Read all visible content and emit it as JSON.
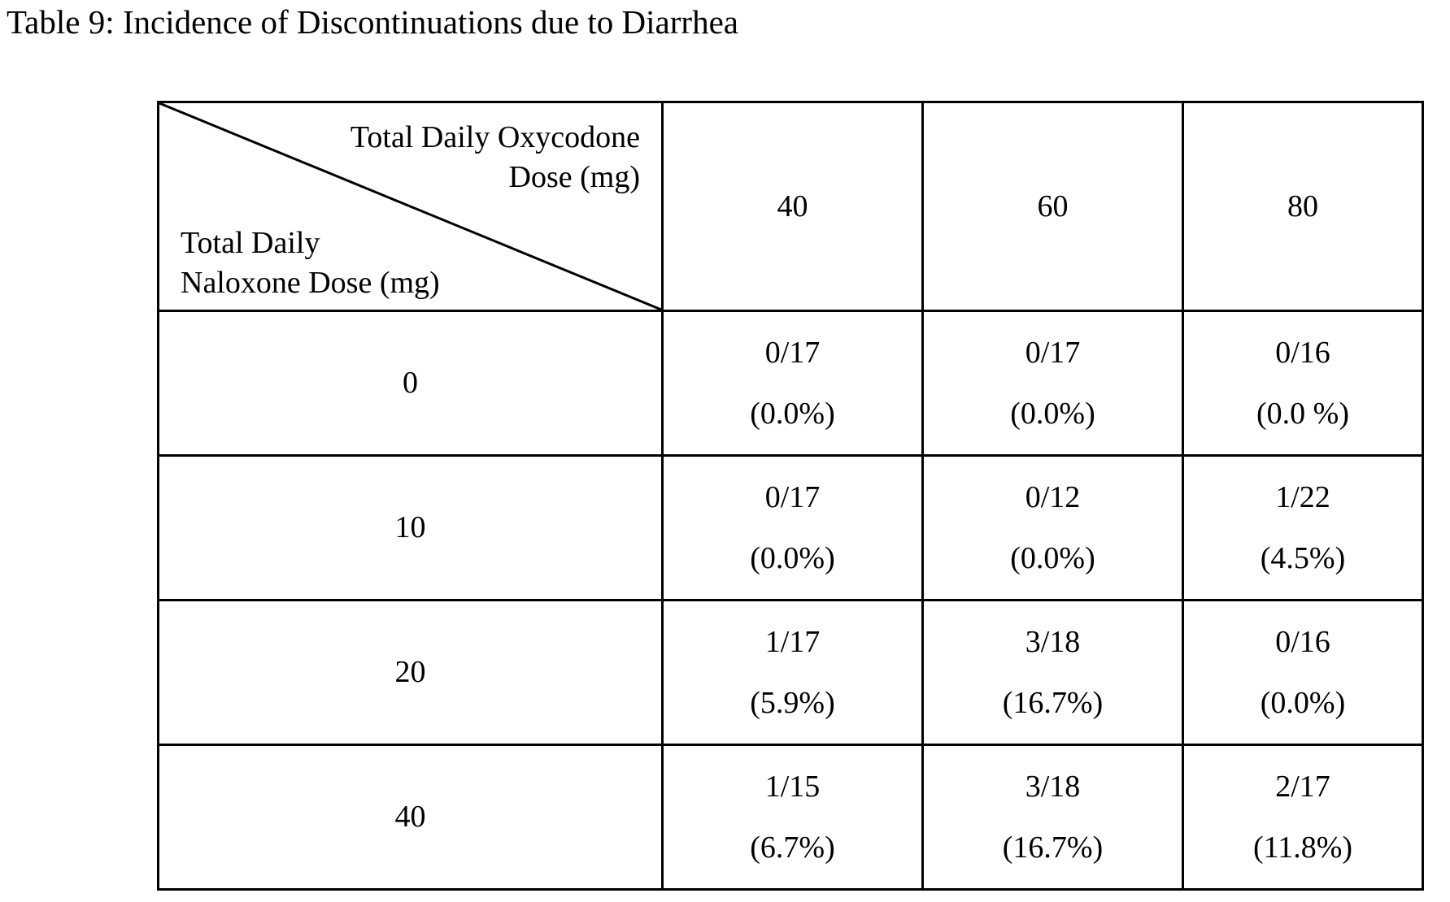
{
  "caption": "Table 9: Incidence of Discontinuations due to Diarrhea",
  "corner": {
    "column_header_line1": "Total Daily Oxycodone",
    "column_header_line2": "Dose (mg)",
    "row_header_line1": "Total Daily",
    "row_header_line2": "Naloxone Dose (mg)"
  },
  "columns": [
    "40",
    "60",
    "80"
  ],
  "rows": [
    {
      "label": "0",
      "cells": [
        {
          "count": "0/17",
          "percent": "(0.0%)"
        },
        {
          "count": "0/17",
          "percent": "(0.0%)"
        },
        {
          "count": "0/16",
          "percent": "(0.0 %)"
        }
      ]
    },
    {
      "label": "10",
      "cells": [
        {
          "count": "0/17",
          "percent": "(0.0%)"
        },
        {
          "count": "0/12",
          "percent": "(0.0%)"
        },
        {
          "count": "1/22",
          "percent": "(4.5%)"
        }
      ]
    },
    {
      "label": "20",
      "cells": [
        {
          "count": "1/17",
          "percent": "(5.9%)"
        },
        {
          "count": "3/18",
          "percent": "(16.7%)"
        },
        {
          "count": "0/16",
          "percent": "(0.0%)"
        }
      ]
    },
    {
      "label": "40",
      "cells": [
        {
          "count": "1/15",
          "percent": "(6.7%)"
        },
        {
          "count": "3/18",
          "percent": "(16.7%)"
        },
        {
          "count": "2/17",
          "percent": "(11.8%)"
        }
      ]
    }
  ]
}
